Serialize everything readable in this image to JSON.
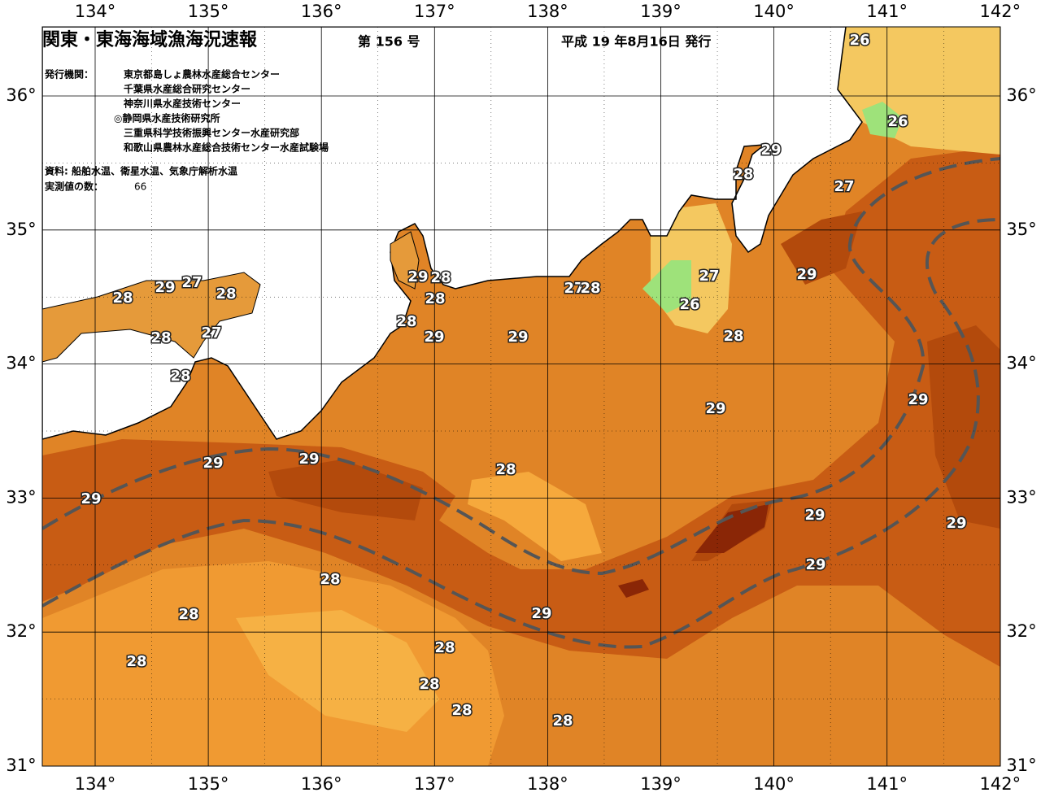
{
  "header": {
    "title": "関東・東海海域漁海況速報",
    "issue": "第 156 号",
    "date": "平成 19 年8月16日 発行",
    "agency_label": "発行機関：",
    "agencies": [
      "東京都島しょ農林水産総合センター",
      "千葉県水産総合研究センター",
      "神奈川県水産技術センター",
      "◎静岡県水産技術研究所",
      "三重県科学技術振興センター水産研究部",
      "和歌山県農林水産総合技術センター水産試験場"
    ],
    "source": "資料: 船舶水温、衛星水温、気象庁解析水温",
    "count_label": "実測値の数：",
    "count": 66
  },
  "map": {
    "lon_labels": [
      "134°",
      "135°",
      "136°",
      "137°",
      "138°",
      "139°",
      "140°",
      "141°",
      "142°"
    ],
    "lat_labels": [
      "36°",
      "35°",
      "34°",
      "33°",
      "32°",
      "31°"
    ],
    "contour_labels": [
      "26",
      "26",
      "29",
      "28",
      "27",
      "29",
      "27",
      "26",
      "28",
      "29",
      "27",
      "28",
      "28",
      "28",
      "27",
      "28",
      "29",
      "28",
      "28",
      "28",
      "29",
      "27",
      "28",
      "29",
      "29",
      "29",
      "29",
      "29",
      "28",
      "29",
      "29",
      "29",
      "29",
      "28",
      "29",
      "28",
      "28",
      "28",
      "28",
      "28",
      "28"
    ]
  }
}
